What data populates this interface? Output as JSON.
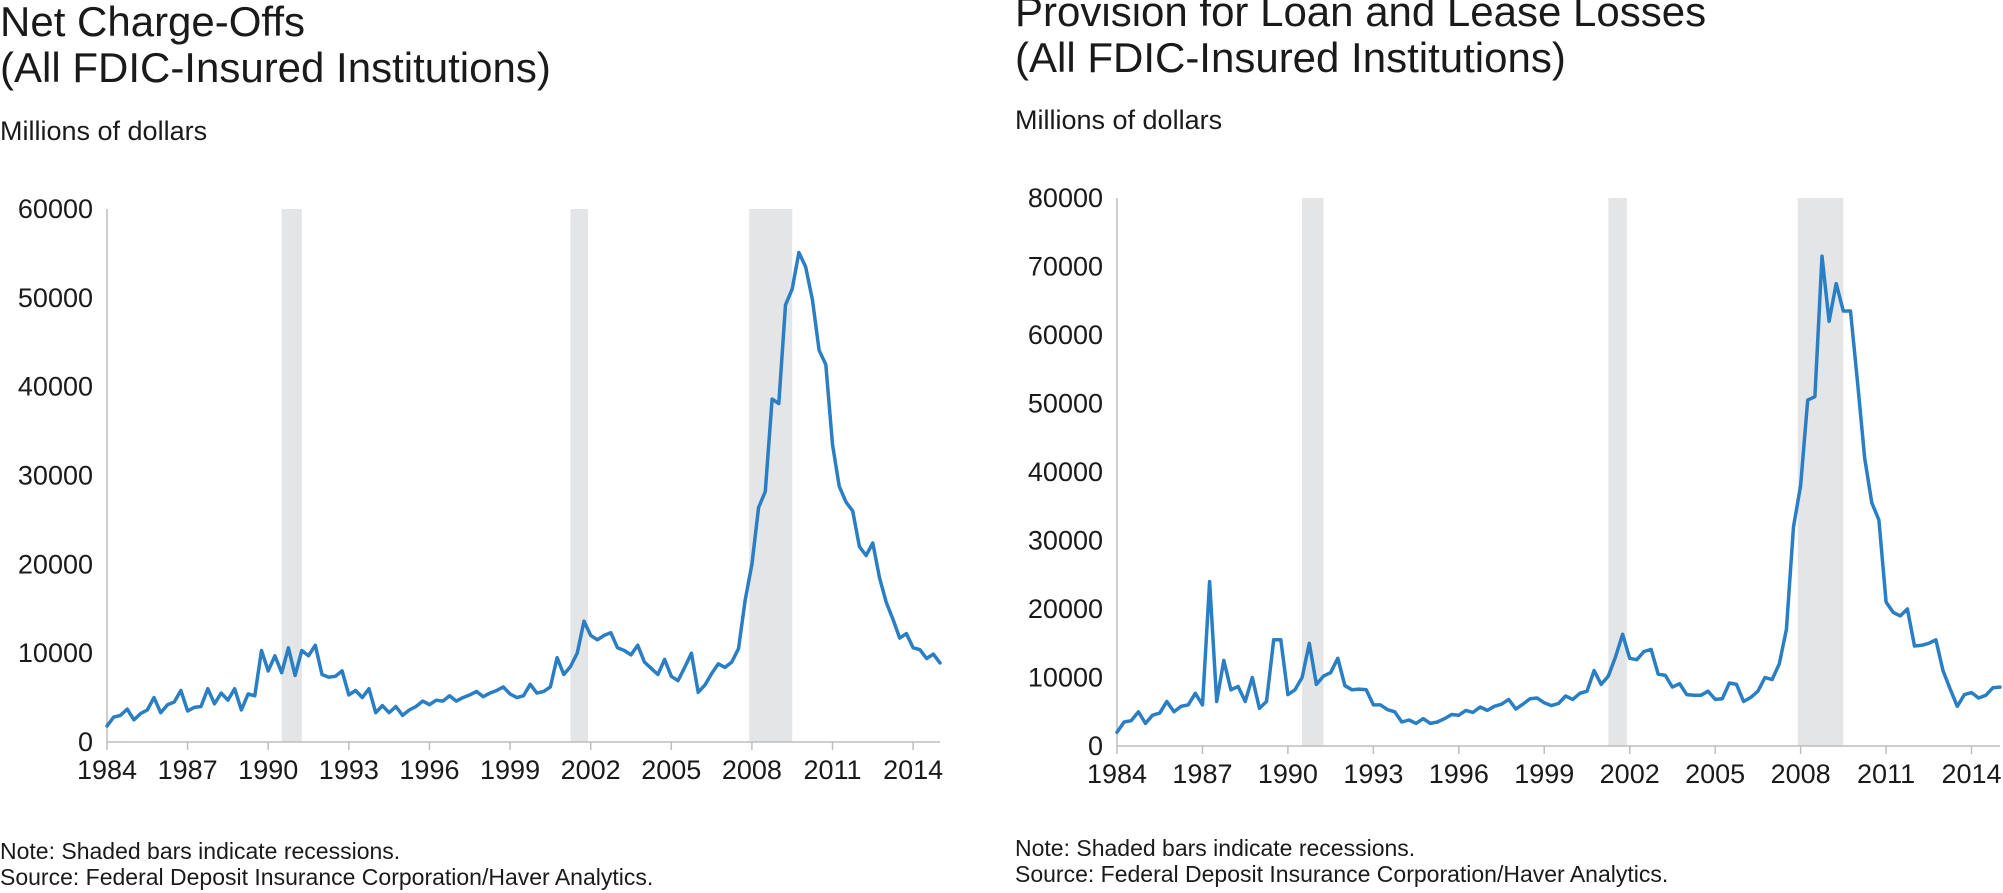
{
  "charts": [
    {
      "title_line1": "Net Charge-Offs",
      "title_line2": "(All FDIC-Insured Institutions)",
      "ylabel": "Millions of dollars",
      "note": "Note: Shaded bars indicate recessions.",
      "source": "Source: Federal Deposit Insurance Corporation/Haver Analytics."
    },
    {
      "title_line1": "Provision for Loan and Lease Losses",
      "title_line2": "(All FDIC-Insured Institutions)",
      "ylabel": "Millions of dollars",
      "note": "Note: Shaded bars indicate recessions.",
      "source": "Source: Federal Deposit Insurance Corporation/Haver Analytics."
    }
  ],
  "chart_data": [
    {
      "type": "line",
      "title": "Net Charge-Offs (All FDIC-Insured Institutions)",
      "ylabel": "Millions of dollars",
      "xlim": [
        1984,
        2015
      ],
      "ylim": [
        0,
        60000
      ],
      "xticks": [
        1984,
        1987,
        1990,
        1993,
        1996,
        1999,
        2002,
        2005,
        2008,
        2011,
        2014
      ],
      "yticks": [
        0,
        10000,
        20000,
        30000,
        40000,
        50000,
        60000
      ],
      "grid": false,
      "color": "#2a7ec4",
      "recessions": [
        [
          1990.5,
          1991.25
        ],
        [
          2001.25,
          2001.9
        ],
        [
          2007.9,
          2009.5
        ]
      ],
      "series": [
        {
          "x": [
            1984,
            1984.25,
            1984.5,
            1984.75,
            1985,
            1985.25,
            1985.5,
            1985.75,
            1986,
            1986.25,
            1986.5,
            1986.75,
            1987,
            1987.25,
            1987.5,
            1987.75,
            1988,
            1988.25,
            1988.5,
            1988.75,
            1989,
            1989.25,
            1989.5,
            1989.75,
            1990,
            1990.25,
            1990.5,
            1990.75,
            1991,
            1991.25,
            1991.5,
            1991.75,
            1992,
            1992.25,
            1992.5,
            1992.75,
            1993,
            1993.25,
            1993.5,
            1993.75,
            1994,
            1994.25,
            1994.5,
            1994.75,
            1995,
            1995.25,
            1995.5,
            1995.75,
            1996,
            1996.25,
            1996.5,
            1996.75,
            1997,
            1997.25,
            1997.5,
            1997.75,
            1998,
            1998.25,
            1998.5,
            1998.75,
            1999,
            1999.25,
            1999.5,
            1999.75,
            2000,
            2000.25,
            2000.5,
            2000.75,
            2001,
            2001.25,
            2001.5,
            2001.75,
            2002,
            2002.25,
            2002.5,
            2002.75,
            2003,
            2003.25,
            2003.5,
            2003.75,
            2004,
            2004.25,
            2004.5,
            2004.75,
            2005,
            2005.25,
            2005.5,
            2005.75,
            2006,
            2006.25,
            2006.5,
            2006.75,
            2007,
            2007.25,
            2007.5,
            2007.75,
            2008,
            2008.25,
            2008.5,
            2008.75,
            2009,
            2009.25,
            2009.5,
            2009.75,
            2010,
            2010.25,
            2010.5,
            2010.75,
            2011,
            2011.25,
            2011.5,
            2011.75,
            2012,
            2012.25,
            2012.5,
            2012.75,
            2013,
            2013.25,
            2013.5,
            2013.75,
            2014,
            2014.25,
            2014.5,
            2014.75,
            2015
          ],
          "y": [
            1800,
            2800,
            3000,
            3700,
            2500,
            3200,
            3600,
            5000,
            3300,
            4200,
            4500,
            5800,
            3500,
            3900,
            4000,
            6000,
            4300,
            5500,
            4700,
            6000,
            3600,
            5400,
            5200,
            10300,
            8000,
            9700,
            7800,
            10600,
            7500,
            10300,
            9700,
            10900,
            7600,
            7300,
            7400,
            8000,
            5300,
            5800,
            5000,
            6000,
            3300,
            4100,
            3300,
            4000,
            3000,
            3600,
            4000,
            4600,
            4200,
            4700,
            4600,
            5200,
            4600,
            5000,
            5300,
            5700,
            5100,
            5500,
            5800,
            6200,
            5400,
            5000,
            5200,
            6500,
            5500,
            5700,
            6200,
            9500,
            7600,
            8500,
            10000,
            13600,
            12000,
            11500,
            12000,
            12300,
            10600,
            10300,
            9800,
            10900,
            9000,
            8300,
            7600,
            9300,
            7400,
            6900,
            8400,
            10000,
            5600,
            6400,
            7700,
            8800,
            8400,
            9000,
            10500,
            16000,
            20000,
            26400,
            28200,
            38600,
            38100,
            49200,
            51000,
            55100,
            53500,
            49800,
            44100,
            42500,
            33500,
            28800,
            27000,
            26000,
            22000,
            21000,
            22400,
            18500,
            15700,
            13800,
            11700,
            12200,
            10600,
            10400,
            9400,
            9900,
            8900
          ]
        }
      ]
    },
    {
      "type": "line",
      "title": "Provision for Loan and Lease Losses (All FDIC-Insured Institutions)",
      "ylabel": "Millions of dollars",
      "xlim": [
        1984,
        2015
      ],
      "ylim": [
        0,
        80000
      ],
      "xticks": [
        1984,
        1987,
        1990,
        1993,
        1996,
        1999,
        2002,
        2005,
        2008,
        2011,
        2014
      ],
      "yticks": [
        0,
        10000,
        20000,
        30000,
        40000,
        50000,
        60000,
        70000,
        80000
      ],
      "grid": false,
      "color": "#2a7ec4",
      "recessions": [
        [
          1990.5,
          1991.25
        ],
        [
          2001.25,
          2001.9
        ],
        [
          2007.9,
          2009.5
        ]
      ],
      "series": [
        {
          "x": [
            1984,
            1984.25,
            1984.5,
            1984.75,
            1985,
            1985.25,
            1985.5,
            1985.75,
            1986,
            1986.25,
            1986.5,
            1986.75,
            1987,
            1987.25,
            1987.5,
            1987.75,
            1988,
            1988.25,
            1988.5,
            1988.75,
            1989,
            1989.25,
            1989.5,
            1989.75,
            1990,
            1990.25,
            1990.5,
            1990.75,
            1991,
            1991.25,
            1991.5,
            1991.75,
            1992,
            1992.25,
            1992.5,
            1992.75,
            1993,
            1993.25,
            1993.5,
            1993.75,
            1994,
            1994.25,
            1994.5,
            1994.75,
            1995,
            1995.25,
            1995.5,
            1995.75,
            1996,
            1996.25,
            1996.5,
            1996.75,
            1997,
            1997.25,
            1997.5,
            1997.75,
            1998,
            1998.25,
            1998.5,
            1998.75,
            1999,
            1999.25,
            1999.5,
            1999.75,
            2000,
            2000.25,
            2000.5,
            2000.75,
            2001,
            2001.25,
            2001.5,
            2001.75,
            2002,
            2002.25,
            2002.5,
            2002.75,
            2003,
            2003.25,
            2003.5,
            2003.75,
            2004,
            2004.25,
            2004.5,
            2004.75,
            2005,
            2005.25,
            2005.5,
            2005.75,
            2006,
            2006.25,
            2006.5,
            2006.75,
            2007,
            2007.25,
            2007.5,
            2007.75,
            2008,
            2008.25,
            2008.5,
            2008.75,
            2009,
            2009.25,
            2009.5,
            2009.75,
            2010,
            2010.25,
            2010.5,
            2010.75,
            2011,
            2011.25,
            2011.5,
            2011.75,
            2012,
            2012.25,
            2012.5,
            2012.75,
            2013,
            2013.25,
            2013.5,
            2013.75,
            2014,
            2014.25,
            2014.5,
            2014.75,
            2015
          ],
          "y": [
            2000,
            3500,
            3700,
            5000,
            3300,
            4500,
            4800,
            6500,
            5000,
            5800,
            6000,
            7700,
            6000,
            24000,
            6500,
            12500,
            8200,
            8700,
            6500,
            10000,
            5500,
            6500,
            15500,
            15500,
            7500,
            8200,
            10000,
            15000,
            9000,
            10200,
            10700,
            12800,
            8800,
            8200,
            8300,
            8200,
            6000,
            6000,
            5300,
            5000,
            3500,
            3800,
            3300,
            4000,
            3300,
            3500,
            4000,
            4600,
            4500,
            5200,
            4900,
            5700,
            5200,
            5800,
            6100,
            6800,
            5400,
            6100,
            6900,
            7000,
            6300,
            5900,
            6200,
            7300,
            6800,
            7700,
            8000,
            11000,
            9000,
            10200,
            13000,
            16300,
            12800,
            12600,
            13800,
            14100,
            10500,
            10300,
            8600,
            9100,
            7500,
            7400,
            7400,
            8000,
            6800,
            6900,
            9200,
            9000,
            6500,
            7100,
            8000,
            10000,
            9700,
            12000,
            17000,
            32000,
            38000,
            50500,
            51000,
            71500,
            62000,
            67500,
            63500,
            63500,
            53000,
            42000,
            35500,
            33000,
            21000,
            19500,
            19000,
            20000,
            14600,
            14700,
            15000,
            15500,
            11000,
            8300,
            5800,
            7500,
            7800,
            7000,
            7400,
            8500,
            8600
          ]
        }
      ]
    }
  ]
}
